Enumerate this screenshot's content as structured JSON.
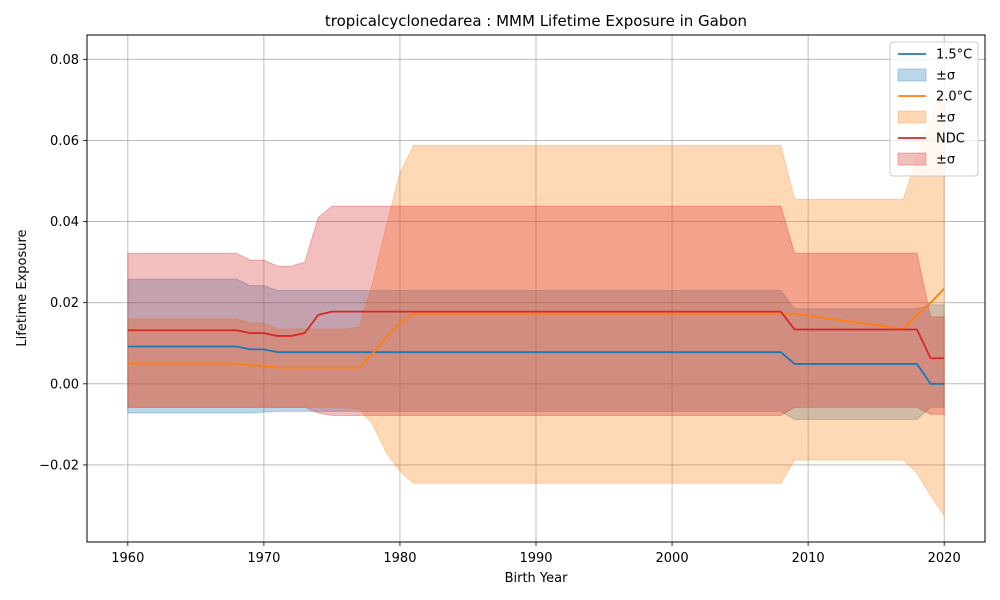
{
  "chart_data": {
    "type": "line",
    "title": "tropicalcyclonedarea : MMM Lifetime Exposure in Gabon",
    "xlabel": "Birth Year",
    "ylabel": "Lifetime Exposure",
    "xlim": [
      1957,
      2023
    ],
    "ylim": [
      -0.039,
      0.086
    ],
    "xticks": [
      1960,
      1970,
      1980,
      1990,
      2000,
      2010,
      2020
    ],
    "xtick_labels": [
      "1960",
      "1970",
      "1980",
      "1990",
      "2000",
      "2010",
      "2020"
    ],
    "yticks": [
      -0.02,
      0.0,
      0.02,
      0.04,
      0.06,
      0.08
    ],
    "ytick_labels": [
      "−0.02",
      "0.00",
      "0.02",
      "0.04",
      "0.06",
      "0.08"
    ],
    "grid": true,
    "legend_position": "top-right",
    "series": [
      {
        "name": "1.5°C",
        "band_name": "±σ",
        "color": "#1f77b4",
        "x": [
          1960,
          1968,
          1969,
          1970,
          1971,
          1973,
          1975,
          2008,
          2009,
          2018,
          2019,
          2020
        ],
        "mean": [
          0.0092,
          0.0092,
          0.0085,
          0.0085,
          0.0078,
          0.0078,
          0.0078,
          0.0078,
          0.0049,
          0.0049,
          0.0,
          0.0
        ],
        "upper": [
          0.0258,
          0.0258,
          0.0242,
          0.0242,
          0.023,
          0.023,
          0.023,
          0.023,
          0.0185,
          0.0185,
          0.0195,
          0.0195
        ],
        "lower": [
          -0.0072,
          -0.0072,
          -0.0072,
          -0.007,
          -0.0068,
          -0.0068,
          -0.0068,
          -0.0068,
          -0.0088,
          -0.0088,
          -0.0058,
          -0.0058
        ]
      },
      {
        "name": "2.0°C",
        "band_name": "±σ",
        "color": "#ff7f0e",
        "x": [
          1960,
          1968,
          1969,
          1970,
          1971,
          1975,
          1976,
          1977,
          1978,
          1979,
          1980,
          1981,
          2008,
          2009,
          2017,
          2018,
          2019,
          2020
        ],
        "mean": [
          0.005,
          0.005,
          0.0045,
          0.0045,
          0.004,
          0.004,
          0.004,
          0.004,
          0.0075,
          0.0115,
          0.015,
          0.0173,
          0.0173,
          0.0173,
          0.0135,
          0.017,
          0.02,
          0.0235
        ],
        "upper": [
          0.016,
          0.016,
          0.015,
          0.015,
          0.0135,
          0.0135,
          0.0135,
          0.014,
          0.025,
          0.039,
          0.052,
          0.0588,
          0.0588,
          0.0455,
          0.0455,
          0.056,
          0.065,
          0.072
        ],
        "lower": [
          -0.0058,
          -0.0058,
          -0.0058,
          -0.0058,
          -0.0058,
          -0.0058,
          -0.006,
          -0.0062,
          -0.01,
          -0.017,
          -0.0215,
          -0.0245,
          -0.0245,
          -0.0188,
          -0.0188,
          -0.022,
          -0.0275,
          -0.0325
        ]
      },
      {
        "name": "NDC",
        "band_name": "±σ",
        "color": "#d62728",
        "x": [
          1960,
          1968,
          1969,
          1970,
          1971,
          1972,
          1973,
          1974,
          1975,
          2008,
          2009,
          2018,
          2019,
          2020
        ],
        "mean": [
          0.0132,
          0.0132,
          0.0125,
          0.0125,
          0.0118,
          0.0118,
          0.0125,
          0.017,
          0.0178,
          0.0178,
          0.0134,
          0.0134,
          0.0063,
          0.0063
        ],
        "upper": [
          0.0322,
          0.0322,
          0.0305,
          0.0305,
          0.029,
          0.029,
          0.03,
          0.041,
          0.0438,
          0.0438,
          0.0322,
          0.0322,
          0.0165,
          0.0165
        ],
        "lower": [
          -0.0058,
          -0.0058,
          -0.0058,
          -0.0058,
          -0.0058,
          -0.0058,
          -0.0058,
          -0.0072,
          -0.0078,
          -0.0078,
          -0.0058,
          -0.0058,
          -0.0075,
          -0.0075
        ]
      }
    ]
  }
}
